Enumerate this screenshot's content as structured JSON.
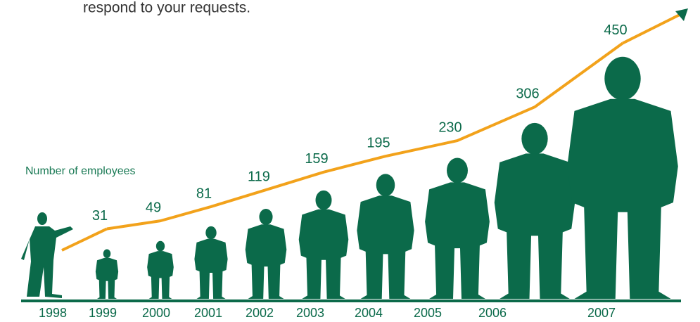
{
  "intro_text": "respond to your requests.",
  "chart_data": {
    "type": "bar",
    "annotation": "Number of employees",
    "categories": [
      "1998",
      "1999",
      "2000",
      "2001",
      "2002",
      "2003",
      "2004",
      "2005",
      "2006",
      "2007"
    ],
    "values": [
      null,
      31,
      49,
      81,
      119,
      159,
      195,
      230,
      306,
      450
    ],
    "color": "#0b6a4a",
    "line_color": "#f2a21b"
  }
}
